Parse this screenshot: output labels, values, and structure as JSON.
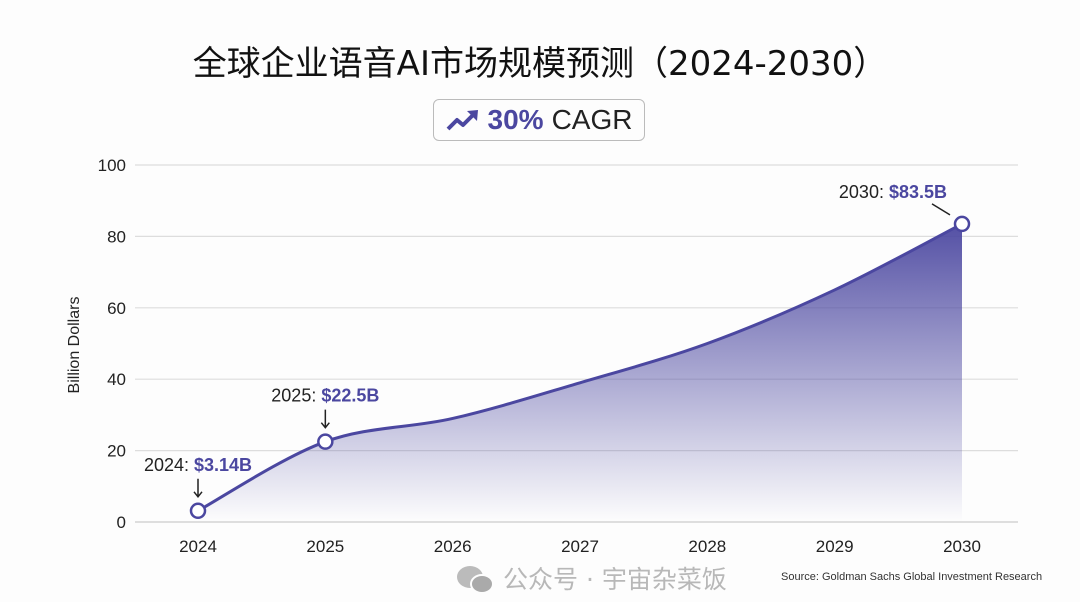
{
  "chart_data": {
    "type": "area",
    "title": "全球企业语音AI市场规模预测（2024-2030）",
    "badge": {
      "value": "30%",
      "label": "CAGR",
      "icon": "trending-up-icon"
    },
    "ylabel": "Billion Dollars",
    "xlabel": "",
    "ylim": [
      0,
      100
    ],
    "yticks": [
      0,
      20,
      40,
      60,
      80,
      100
    ],
    "categories": [
      "2024",
      "2025",
      "2026",
      "2027",
      "2028",
      "2029",
      "2030"
    ],
    "values": [
      3.14,
      22.5,
      29,
      39,
      50,
      65,
      83.5
    ],
    "annotations": [
      {
        "index": 0,
        "prefix": "2024: ",
        "value": "$3.14B"
      },
      {
        "index": 1,
        "prefix": "2025: ",
        "value": "$22.5B"
      },
      {
        "index": 6,
        "prefix": "2030: ",
        "value": "$83.5B"
      }
    ],
    "grid": true,
    "color": "#4b47a0",
    "source": "Source: Goldman Sachs Global Investment Research"
  },
  "watermark": "公众号 · 宇宙杂菜饭"
}
